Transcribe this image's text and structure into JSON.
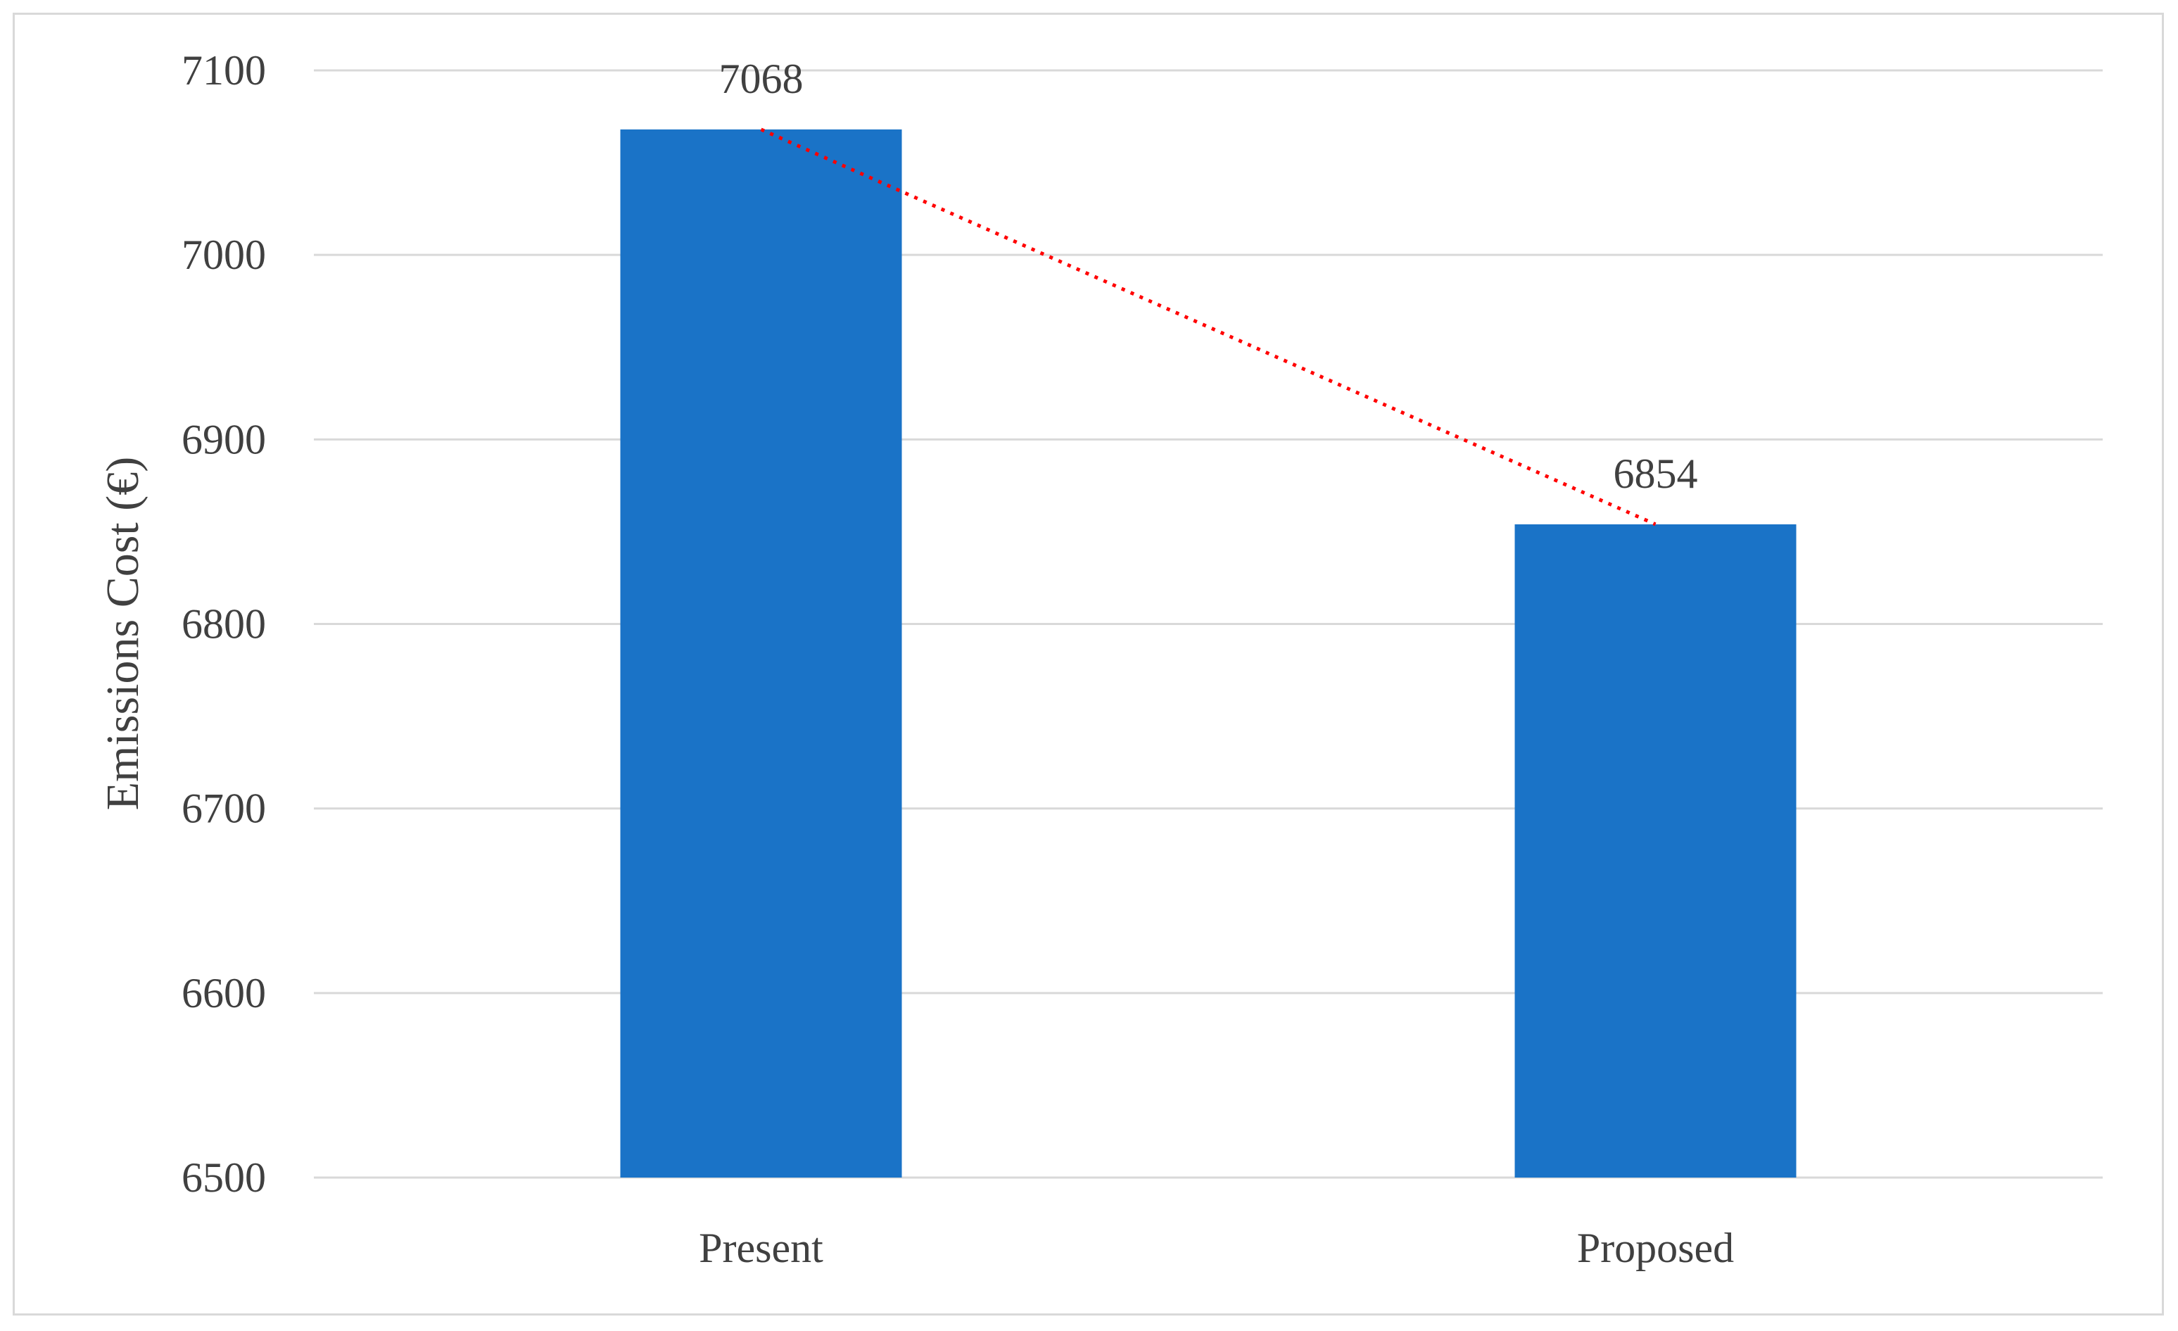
{
  "chart_data": {
    "type": "bar",
    "categories": [
      "Present",
      "Proposed"
    ],
    "values": [
      7068,
      6854
    ],
    "data_labels": [
      "7068",
      "6854"
    ],
    "title": "",
    "xlabel": "",
    "ylabel": "Emissions Cost (€)",
    "ylim": [
      6500,
      7100
    ],
    "yticks": [
      6500,
      6600,
      6700,
      6800,
      6900,
      7000,
      7100
    ],
    "ytick_labels": [
      "6500",
      "6600",
      "6700",
      "6800",
      "6900",
      "7000",
      "7100"
    ],
    "grid": true,
    "legend": "none",
    "trendline": {
      "style": "dotted",
      "connects": "bar tops",
      "color": "#ff0000"
    },
    "bar_color": "#1a73c7",
    "gridline_color": "#d9d9d9"
  }
}
